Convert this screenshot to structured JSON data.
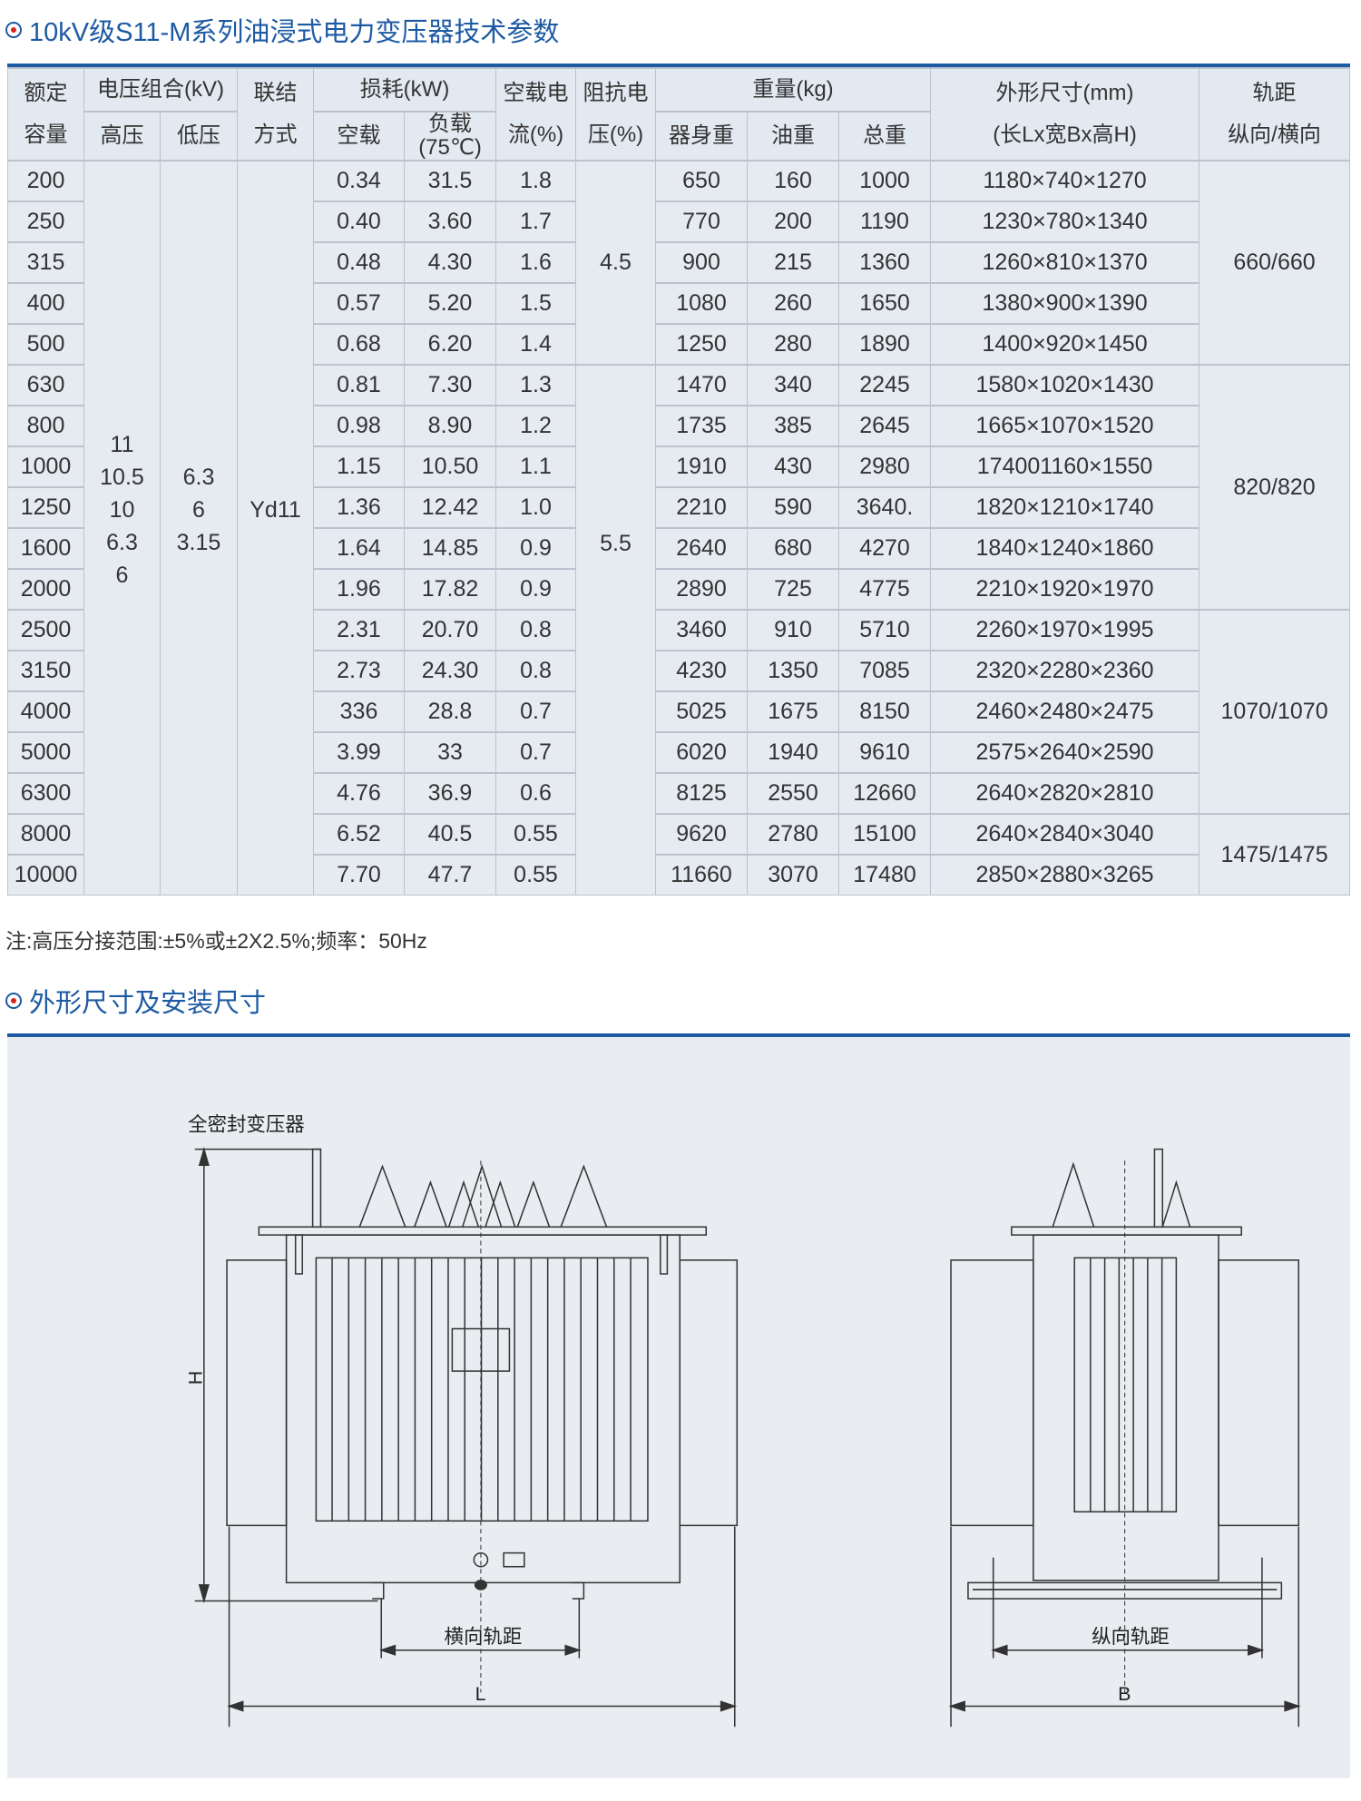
{
  "section1": {
    "title": "10kV级S11-M系列油浸式电力变压器技术参数"
  },
  "table": {
    "headers": {
      "capacity": [
        "额定",
        "容量"
      ],
      "voltage": "电压组合(kV)",
      "hv": "高压",
      "lv": "低压",
      "connection": [
        "联结",
        "方式"
      ],
      "loss": "损耗(kW)",
      "no_load": "空载",
      "load": [
        "负载",
        "(75℃)"
      ],
      "no_load_current": [
        "空载电",
        "流(%)"
      ],
      "impedance": [
        "阻抗电",
        "压(%)"
      ],
      "weight": "重量(kg)",
      "body_weight": "器身重",
      "oil_weight": "油重",
      "total_weight": "总重",
      "dimensions": [
        "外形尺寸(mm)",
        "(长Lx宽Bx高H)"
      ],
      "gauge": [
        "轨距",
        "纵向/横向"
      ]
    },
    "merged": {
      "hv_values": [
        "11",
        "10.5",
        "10",
        "6.3",
        "6"
      ],
      "lv_values": [
        "6.3",
        "6",
        "3.15"
      ],
      "connection": "Yd11",
      "impedance": [
        "4.5",
        "5.5"
      ],
      "gauge": [
        "660/660",
        "820/820",
        "1070/1070",
        "1475/1475"
      ]
    },
    "rows": [
      [
        "200",
        "0.34",
        "31.5",
        "1.8",
        "650",
        "160",
        "1000",
        "1180×740×1270"
      ],
      [
        "250",
        "0.40",
        "3.60",
        "1.7",
        "770",
        "200",
        "1190",
        "1230×780×1340"
      ],
      [
        "315",
        "0.48",
        "4.30",
        "1.6",
        "900",
        "215",
        "1360",
        "1260×810×1370"
      ],
      [
        "400",
        "0.57",
        "5.20",
        "1.5",
        "1080",
        "260",
        "1650",
        "1380×900×1390"
      ],
      [
        "500",
        "0.68",
        "6.20",
        "1.4",
        "1250",
        "280",
        "1890",
        "1400×920×1450"
      ],
      [
        "630",
        "0.81",
        "7.30",
        "1.3",
        "1470",
        "340",
        "2245",
        "1580×1020×1430"
      ],
      [
        "800",
        "0.98",
        "8.90",
        "1.2",
        "1735",
        "385",
        "2645",
        "1665×1070×1520"
      ],
      [
        "1000",
        "1.15",
        "10.50",
        "1.1",
        "1910",
        "430",
        "2980",
        "174001160×1550"
      ],
      [
        "1250",
        "1.36",
        "12.42",
        "1.0",
        "2210",
        "590",
        "3640.",
        "1820×1210×1740"
      ],
      [
        "1600",
        "1.64",
        "14.85",
        "0.9",
        "2640",
        "680",
        "4270",
        "1840×1240×1860"
      ],
      [
        "2000",
        "1.96",
        "17.82",
        "0.9",
        "2890",
        "725",
        "4775",
        "2210×1920×1970"
      ],
      [
        "2500",
        "2.31",
        "20.70",
        "0.8",
        "3460",
        "910",
        "5710",
        "2260×1970×1995"
      ],
      [
        "3150",
        "2.73",
        "24.30",
        "0.8",
        "4230",
        "1350",
        "7085",
        "2320×2280×2360"
      ],
      [
        "4000",
        "336",
        "28.8",
        "0.7",
        "5025",
        "1675",
        "8150",
        "2460×2480×2475"
      ],
      [
        "5000",
        "3.99",
        "33",
        "0.7",
        "6020",
        "1940",
        "9610",
        "2575×2640×2590"
      ],
      [
        "6300",
        "4.76",
        "36.9",
        "0.6",
        "8125",
        "2550",
        "12660",
        "2640×2820×2810"
      ],
      [
        "8000",
        "6.52",
        "40.5",
        "0.55",
        "9620",
        "2780",
        "15100",
        "2640×2840×3040"
      ],
      [
        "10000",
        "7.70",
        "47.7",
        "0.55",
        "11660",
        "3070",
        "17480",
        "2850×2880×3265"
      ]
    ]
  },
  "note": "注:高压分接范围:±5%或±2X2.5%;频率：50Hz",
  "section2": {
    "title": "外形尺寸及安装尺寸"
  },
  "drawing": {
    "label_transformer": "全密封变压器",
    "label_h": "H",
    "label_lateral_gauge": "横向轨距",
    "label_l": "L",
    "label_longitudinal_gauge": "纵向轨距",
    "label_b": "B"
  },
  "colors": {
    "accent": "#1d5aa3",
    "table_bg": "#e6ebf2",
    "drawing_bg": "#e9ecf0"
  }
}
